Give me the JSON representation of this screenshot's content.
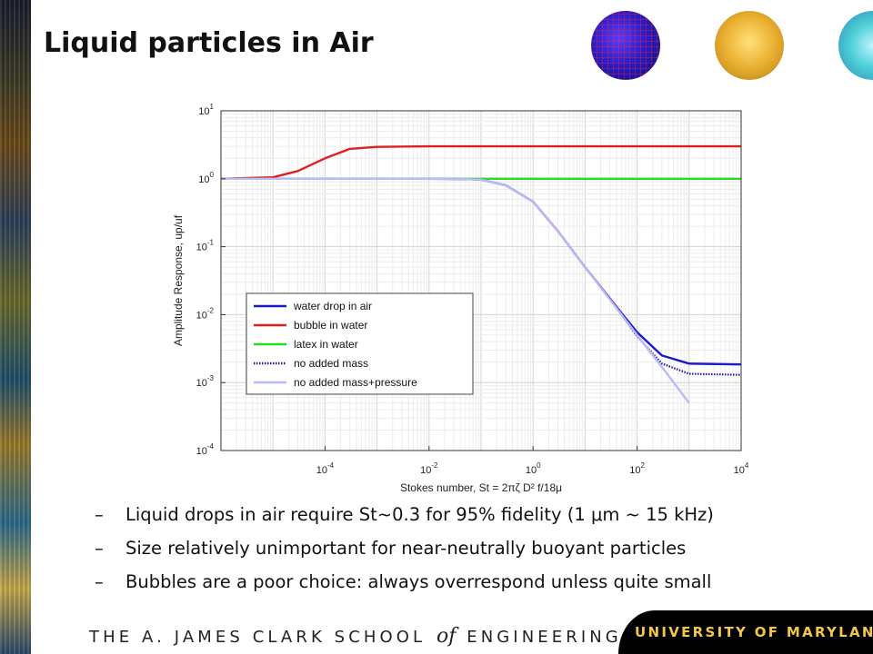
{
  "slide": {
    "title": "Liquid particles in Air",
    "bullets": [
      {
        "dash": "–",
        "text": "Liquid drops in air require St~0.3 for 95% fidelity (1 μm ~ 15 kHz)"
      },
      {
        "dash": "–",
        "text": "Size relatively unimportant for near-neutrally buoyant particles"
      },
      {
        "dash": "–",
        "text": "Bubbles are a poor choice: always overrespond unless quite small"
      }
    ],
    "footer": {
      "left_part1": "THE A. JAMES CLARK SCHOOL",
      "left_of": "of",
      "left_part2": "ENGINEERING",
      "right": "UNIVERSITY OF MARYLAND"
    }
  },
  "chart_data": {
    "type": "line",
    "xscale": "log",
    "yscale": "log",
    "xlim": [
      1e-06,
      10000
    ],
    "ylim": [
      0.0001,
      10
    ],
    "grid": true,
    "title": "",
    "xlabel": "Stokes number, St = 2πζ D² f/18μ",
    "ylabel": "Amplitude Response, up/uf",
    "x_ticks": [
      {
        "value": 0.0001,
        "base": "10",
        "exp": "-4"
      },
      {
        "value": 0.01,
        "base": "10",
        "exp": "-2"
      },
      {
        "value": 1,
        "base": "10",
        "exp": "0"
      },
      {
        "value": 100,
        "base": "10",
        "exp": "2"
      },
      {
        "value": 10000,
        "base": "10",
        "exp": "4"
      }
    ],
    "y_ticks": [
      {
        "value": 10,
        "base": "10",
        "exp": "1"
      },
      {
        "value": 1,
        "base": "10",
        "exp": "0"
      },
      {
        "value": 0.1,
        "base": "10",
        "exp": "-1"
      },
      {
        "value": 0.01,
        "base": "10",
        "exp": "-2"
      },
      {
        "value": 0.001,
        "base": "10",
        "exp": "-3"
      },
      {
        "value": 0.0001,
        "base": "10",
        "exp": "-4"
      }
    ],
    "legend_position": "lower-left",
    "series": [
      {
        "name": "water drop in air",
        "color": "#1a1ac8",
        "style": "solid",
        "x": [
          1e-06,
          0.001,
          0.01,
          0.05,
          0.1,
          0.3,
          1,
          3,
          10,
          30,
          50,
          100,
          300,
          1000,
          10000
        ],
        "y": [
          1,
          1,
          1,
          0.99,
          0.97,
          0.8,
          0.46,
          0.17,
          0.05,
          0.0172,
          0.0105,
          0.0055,
          0.0025,
          0.0019,
          0.00185
        ]
      },
      {
        "name": "bubble in water",
        "color": "#e02020",
        "style": "solid",
        "x": [
          1e-06,
          1e-05,
          3e-05,
          0.0001,
          0.0003,
          0.001,
          0.01,
          10000
        ],
        "y": [
          1,
          1.05,
          1.3,
          2,
          2.75,
          2.95,
          3,
          3
        ]
      },
      {
        "name": "latex in water",
        "color": "#22dd22",
        "style": "solid",
        "x": [
          1e-06,
          10000
        ],
        "y": [
          1,
          1
        ]
      },
      {
        "name": "no added mass",
        "color": "#1a1aa0",
        "style": "dotted",
        "x": [
          1e-06,
          0.001,
          0.01,
          0.05,
          0.1,
          0.3,
          1,
          3,
          10,
          30,
          50,
          100,
          300,
          1000,
          10000
        ],
        "y": [
          1,
          1,
          1,
          0.99,
          0.97,
          0.8,
          0.46,
          0.17,
          0.05,
          0.0168,
          0.01,
          0.0048,
          0.0019,
          0.00135,
          0.0013
        ]
      },
      {
        "name": "no added mass+pressure",
        "color": "#b8bcf2",
        "style": "solid",
        "x": [
          1e-06,
          0.001,
          0.01,
          0.05,
          0.1,
          0.3,
          1,
          3,
          10,
          30,
          100,
          300,
          1000
        ],
        "y": [
          1,
          1,
          1,
          0.99,
          0.97,
          0.8,
          0.46,
          0.17,
          0.05,
          0.0167,
          0.005,
          0.0017,
          0.0005
        ]
      }
    ]
  }
}
